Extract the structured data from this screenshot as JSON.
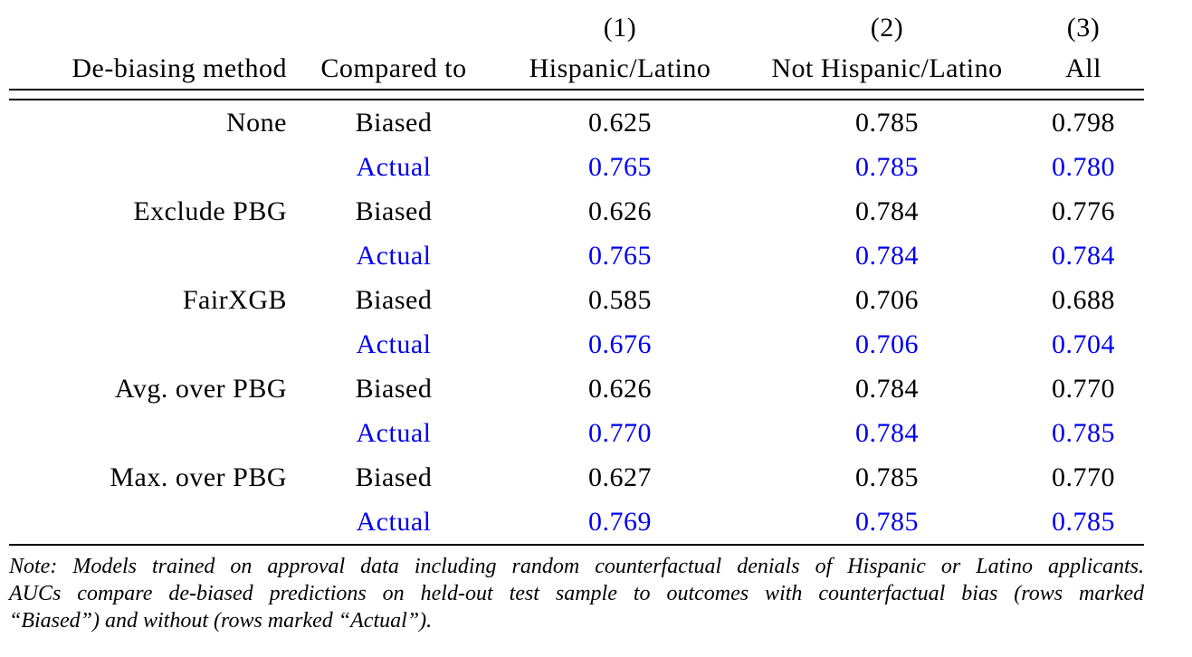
{
  "table": {
    "col_numbers": [
      "(1)",
      "(2)",
      "(3)"
    ],
    "headers": {
      "method": "De-biasing method",
      "compared": "Compared to",
      "group1": "Hispanic/Latino",
      "group2": "Not Hispanic/Latino",
      "group3": "All"
    },
    "rows": [
      {
        "method": "None",
        "compared": "Biased",
        "v1": "0.625",
        "v2": "0.785",
        "v3": "0.798"
      },
      {
        "method": "",
        "compared": "Actual",
        "v1": "0.765",
        "v2": "0.785",
        "v3": "0.780"
      },
      {
        "method": "Exclude PBG",
        "compared": "Biased",
        "v1": "0.626",
        "v2": "0.784",
        "v3": "0.776"
      },
      {
        "method": "",
        "compared": "Actual",
        "v1": "0.765",
        "v2": "0.784",
        "v3": "0.784"
      },
      {
        "method": "FairXGB",
        "compared": "Biased",
        "v1": "0.585",
        "v2": "0.706",
        "v3": "0.688"
      },
      {
        "method": "",
        "compared": "Actual",
        "v1": "0.676",
        "v2": "0.706",
        "v3": "0.704"
      },
      {
        "method": "Avg. over PBG",
        "compared": "Biased",
        "v1": "0.626",
        "v2": "0.784",
        "v3": "0.770"
      },
      {
        "method": "",
        "compared": "Actual",
        "v1": "0.770",
        "v2": "0.784",
        "v3": "0.785"
      },
      {
        "method": "Max. over PBG",
        "compared": "Biased",
        "v1": "0.627",
        "v2": "0.785",
        "v3": "0.770"
      },
      {
        "method": "",
        "compared": "Actual",
        "v1": "0.769",
        "v2": "0.785",
        "v3": "0.785"
      }
    ]
  },
  "note": {
    "lines": [
      "Note: Models trained on approval data including random counterfactual denials of Hispanic or Latino applicants.",
      "AUCs compare de-biased predictions on held-out test sample to outcomes with counterfactual bias (rows marked",
      "“Biased”) and without (rows marked “Actual”)."
    ]
  },
  "colors": {
    "actual_blue": "#0000EE",
    "text": "#000000"
  }
}
